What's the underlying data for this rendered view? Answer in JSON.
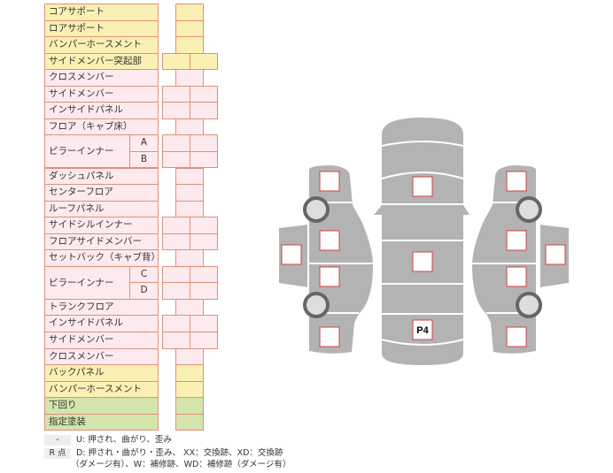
{
  "rows": [
    {
      "label": "コアサポート",
      "color": "yellow",
      "cells": 1
    },
    {
      "label": "ロアサポート",
      "color": "yellow",
      "cells": 1
    },
    {
      "label": "バンパーホースメント",
      "color": "yellow",
      "cells": 1
    },
    {
      "label": "サイドメンバー突起部",
      "color": "yellow",
      "cells": 2
    },
    {
      "label": "クロスメンバー",
      "color": "pink",
      "cells": 1
    },
    {
      "label": "サイドメンバー",
      "color": "pink",
      "cells": 2
    },
    {
      "label": "インサイドパネル",
      "color": "pink",
      "cells": 2
    },
    {
      "label": "フロア（キャブ床）",
      "color": "pink",
      "cells": 1
    },
    {
      "label": "ピラーインナー",
      "sub": "A",
      "color": "pink",
      "cells": 2,
      "group_start": true
    },
    {
      "label": "",
      "sub": "B",
      "color": "pink",
      "cells": 2,
      "group_cont": true
    },
    {
      "label": "ダッシュパネル",
      "color": "pink",
      "cells": 1
    },
    {
      "label": "センターフロア",
      "color": "pink",
      "cells": 1
    },
    {
      "label": "ルーフパネル",
      "color": "pink",
      "cells": 1
    },
    {
      "label": "サイドシルインナー",
      "color": "pink",
      "cells": 2
    },
    {
      "label": "フロアサイドメンバー",
      "color": "pink",
      "cells": 2
    },
    {
      "label": "セットバック（キャブ背）",
      "color": "pink",
      "cells": 1
    },
    {
      "label": "ピラーインナー",
      "sub": "C",
      "color": "pink",
      "cells": 2,
      "group_start": true
    },
    {
      "label": "",
      "sub": "D",
      "color": "pink",
      "cells": 2,
      "group_cont": true
    },
    {
      "label": "トランクフロア",
      "color": "pink",
      "cells": 1
    },
    {
      "label": "インサイドパネル",
      "color": "pink",
      "cells": 2
    },
    {
      "label": "サイドメンバー",
      "color": "pink",
      "cells": 2
    },
    {
      "label": "クロスメンバー",
      "color": "pink",
      "cells": 1
    },
    {
      "label": "バックパネル",
      "color": "yellow",
      "cells": 1
    },
    {
      "label": "バンパーホースメント",
      "color": "yellow",
      "cells": 1
    },
    {
      "label": "下回り",
      "color": "green",
      "cells": 1
    },
    {
      "label": "指定塗装",
      "color": "green",
      "cells": 1
    }
  ],
  "colors": {
    "yellow": "#fbf0b4",
    "pink": "#fceaee",
    "green": "#d3e4ac",
    "border": "#e0907a",
    "car": "#b3b3b3",
    "marker": "#d04040"
  },
  "legend": {
    "key1": "-",
    "text1": "U: 押され、曲がり、歪み",
    "key2": "R 点",
    "text2": "D: 押され・曲がり・歪み、 XX：交換跡、XD：交換跡",
    "text3": "（ダメージ有）、W：補修跡、WD：補修跡（ダメージ有）"
  },
  "diagram": {
    "center_marker_label": "P4"
  }
}
